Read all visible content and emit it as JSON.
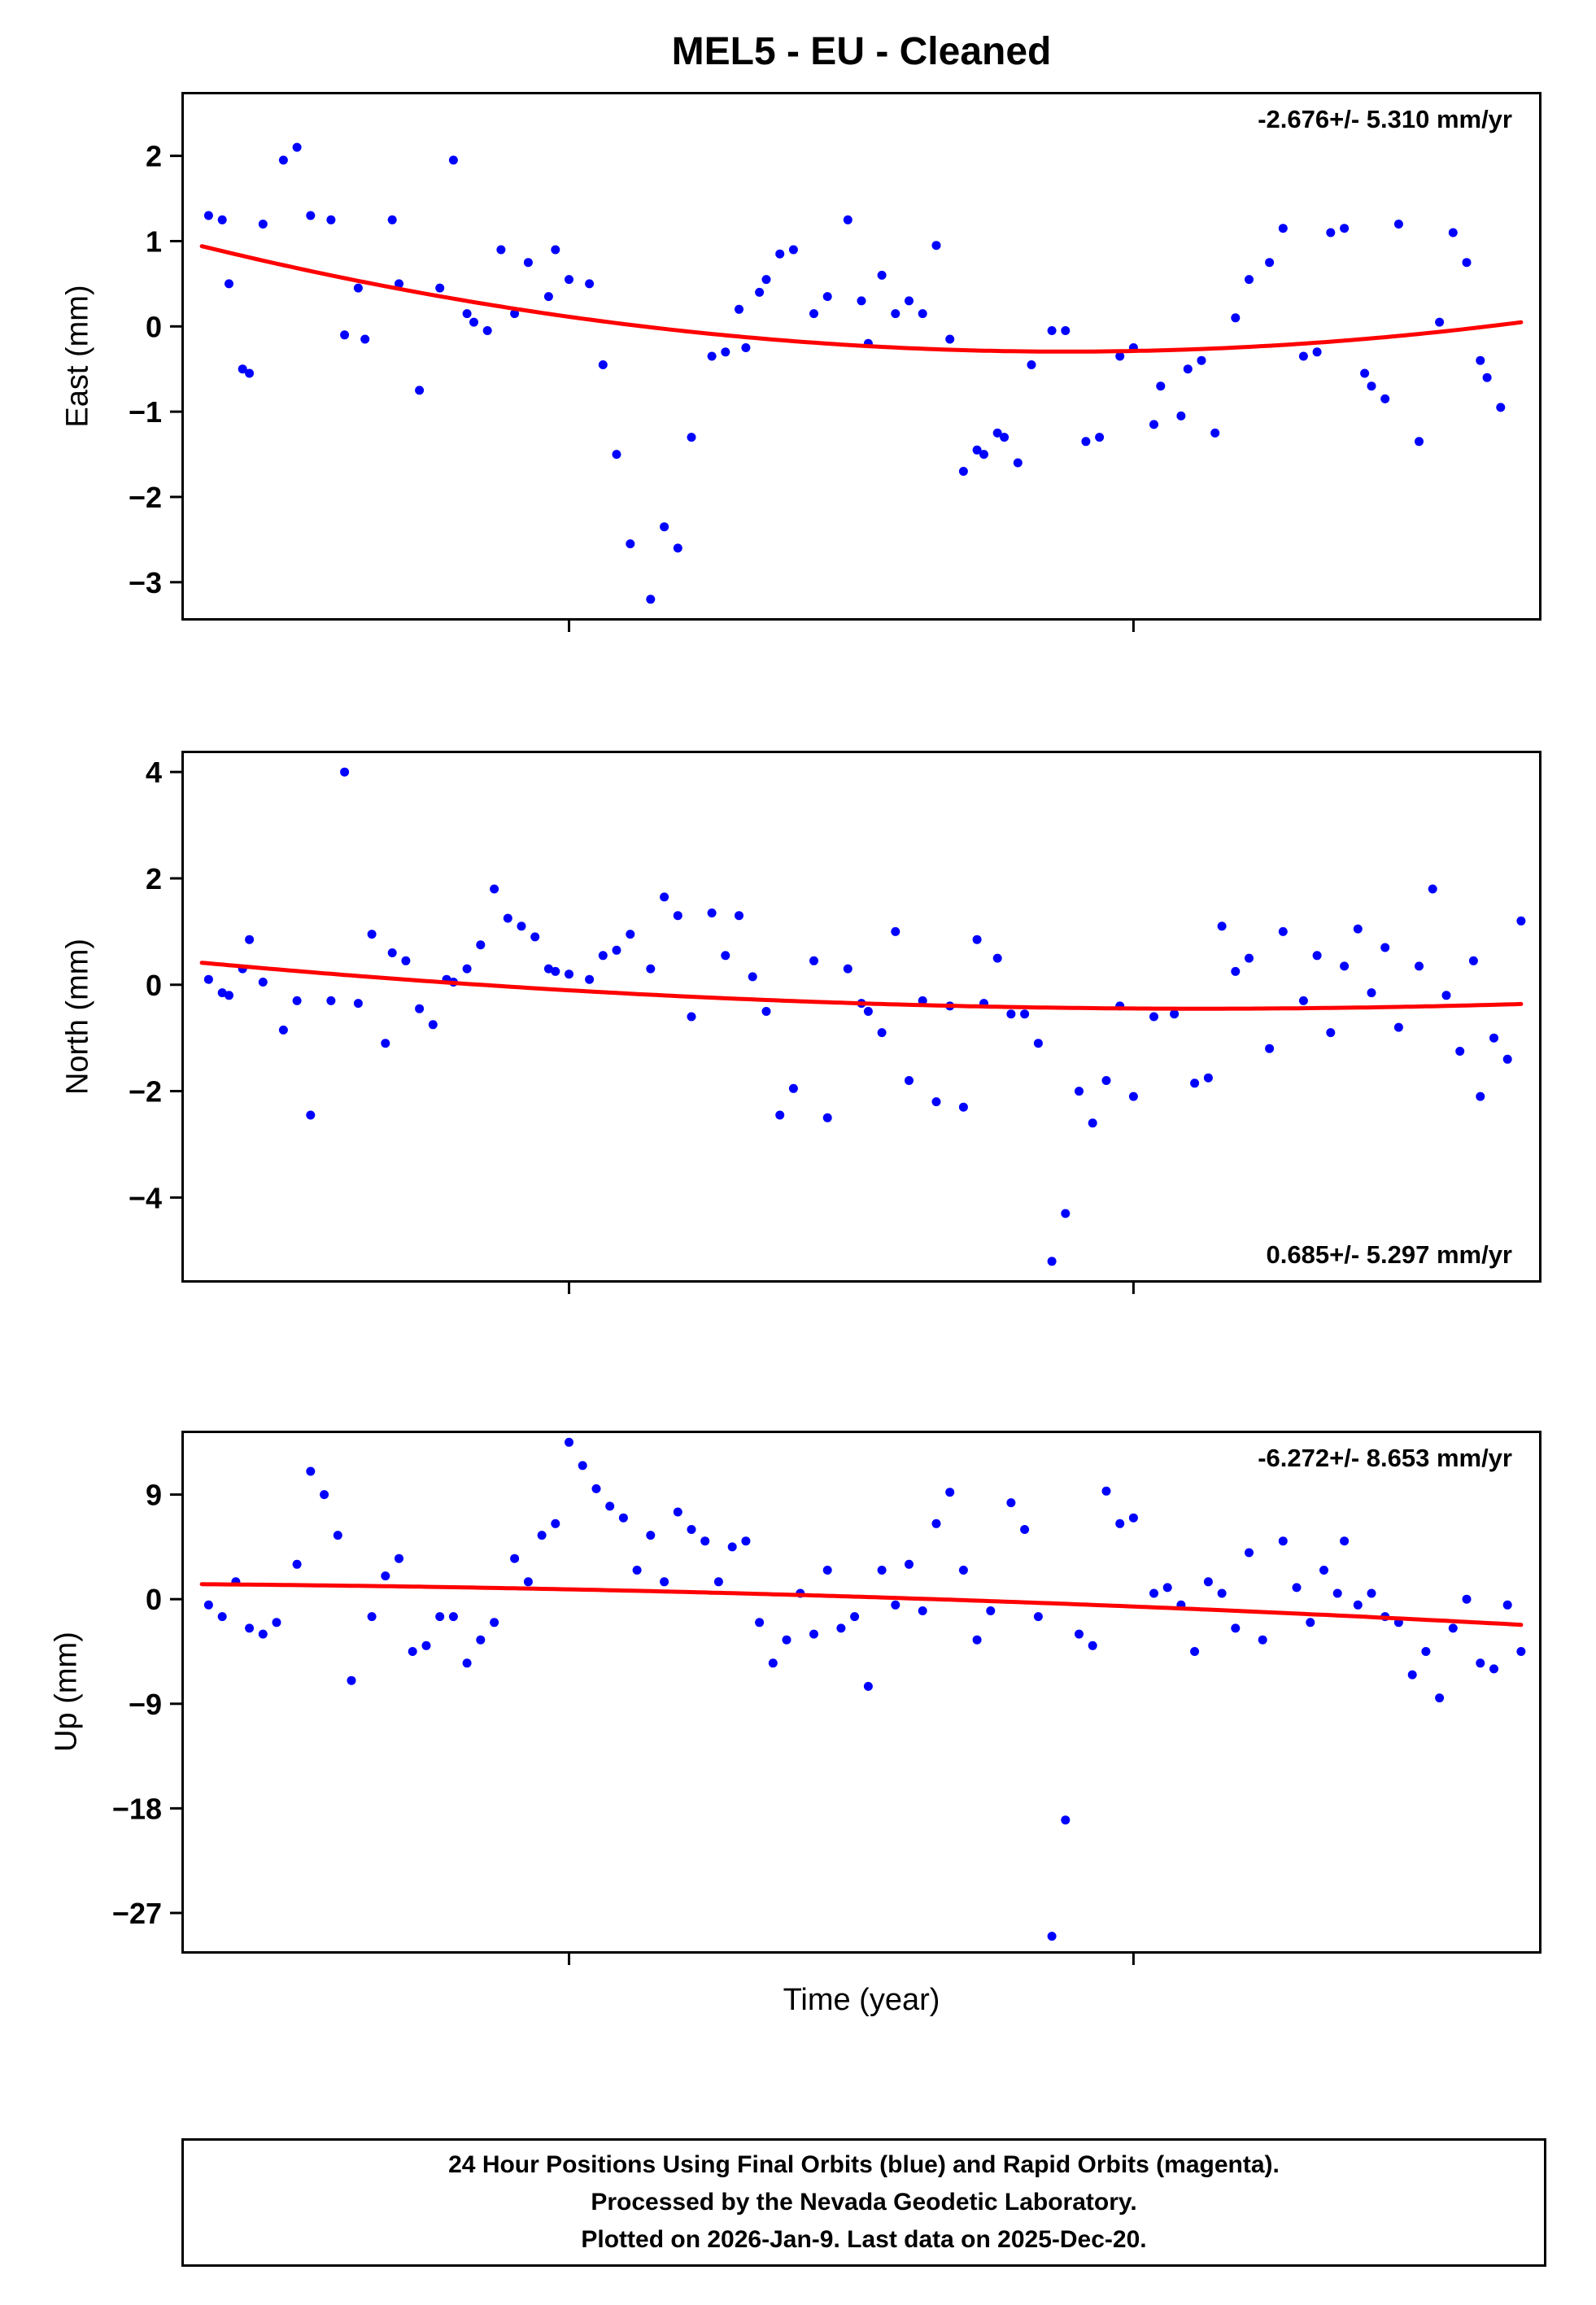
{
  "title": "MEL5  - EU - Cleaned",
  "xlabel": "Time (year)",
  "colors": {
    "point": "#0000ff",
    "trend": "#ff0000",
    "axis": "#000000"
  },
  "footer": {
    "line1": "24 Hour Positions Using Final Orbits (blue) and Rapid Orbits (magenta).",
    "line2": "Processed by the Nevada Geodetic Laboratory.",
    "line3": "Plotted on 2026-Jan-9. Last data on 2025-Dec-20."
  },
  "chart_data": [
    {
      "type": "scatter",
      "name": "east",
      "ylabel": "East (mm)",
      "annotation": "-2.676+/- 5.310 mm/yr",
      "annotation_pos": "top-right",
      "xlim": [
        0,
        1
      ],
      "xticks": [
        0.285,
        0.7
      ],
      "ylim": [
        -3.45,
        2.75
      ],
      "yticks": [
        2,
        1,
        0,
        -1,
        -2,
        -3
      ],
      "trend": {
        "type": "quadratic",
        "coeffs": [
          1.0,
          -3.987,
          3.067
        ]
      },
      "points": [
        [
          0.02,
          1.3
        ],
        [
          0.03,
          1.25
        ],
        [
          0.035,
          0.5
        ],
        [
          0.045,
          -0.5
        ],
        [
          0.05,
          -0.55
        ],
        [
          0.06,
          1.2
        ],
        [
          0.075,
          1.95
        ],
        [
          0.085,
          2.1
        ],
        [
          0.095,
          1.3
        ],
        [
          0.11,
          1.25
        ],
        [
          0.12,
          -0.1
        ],
        [
          0.13,
          0.45
        ],
        [
          0.135,
          -0.15
        ],
        [
          0.155,
          1.25
        ],
        [
          0.16,
          0.5
        ],
        [
          0.175,
          -0.75
        ],
        [
          0.19,
          0.45
        ],
        [
          0.2,
          1.95
        ],
        [
          0.21,
          0.15
        ],
        [
          0.215,
          0.05
        ],
        [
          0.225,
          -0.05
        ],
        [
          0.235,
          0.9
        ],
        [
          0.245,
          0.15
        ],
        [
          0.255,
          0.75
        ],
        [
          0.27,
          0.35
        ],
        [
          0.275,
          0.9
        ],
        [
          0.285,
          0.55
        ],
        [
          0.3,
          0.5
        ],
        [
          0.31,
          -0.45
        ],
        [
          0.32,
          -1.5
        ],
        [
          0.33,
          -2.55
        ],
        [
          0.345,
          -3.2
        ],
        [
          0.355,
          -2.35
        ],
        [
          0.365,
          -2.6
        ],
        [
          0.375,
          -1.3
        ],
        [
          0.39,
          -0.35
        ],
        [
          0.4,
          -0.3
        ],
        [
          0.41,
          0.2
        ],
        [
          0.415,
          -0.25
        ],
        [
          0.425,
          0.4
        ],
        [
          0.43,
          0.55
        ],
        [
          0.44,
          0.85
        ],
        [
          0.45,
          0.9
        ],
        [
          0.465,
          0.15
        ],
        [
          0.475,
          0.35
        ],
        [
          0.49,
          1.25
        ],
        [
          0.5,
          0.3
        ],
        [
          0.505,
          -0.2
        ],
        [
          0.515,
          0.6
        ],
        [
          0.525,
          0.15
        ],
        [
          0.535,
          0.3
        ],
        [
          0.545,
          0.15
        ],
        [
          0.555,
          0.95
        ],
        [
          0.565,
          -0.15
        ],
        [
          0.575,
          -1.7
        ],
        [
          0.585,
          -1.45
        ],
        [
          0.59,
          -1.5
        ],
        [
          0.6,
          -1.25
        ],
        [
          0.605,
          -1.3
        ],
        [
          0.615,
          -1.6
        ],
        [
          0.625,
          -0.45
        ],
        [
          0.64,
          -0.05
        ],
        [
          0.65,
          -0.05
        ],
        [
          0.665,
          -1.35
        ],
        [
          0.675,
          -1.3
        ],
        [
          0.69,
          -0.35
        ],
        [
          0.7,
          -0.25
        ],
        [
          0.715,
          -1.15
        ],
        [
          0.72,
          -0.7
        ],
        [
          0.735,
          -1.05
        ],
        [
          0.74,
          -0.5
        ],
        [
          0.75,
          -0.4
        ],
        [
          0.76,
          -1.25
        ],
        [
          0.775,
          0.1
        ],
        [
          0.785,
          0.55
        ],
        [
          0.8,
          0.75
        ],
        [
          0.81,
          1.15
        ],
        [
          0.825,
          -0.35
        ],
        [
          0.835,
          -0.3
        ],
        [
          0.845,
          1.1
        ],
        [
          0.855,
          1.15
        ],
        [
          0.87,
          -0.55
        ],
        [
          0.875,
          -0.7
        ],
        [
          0.885,
          -0.85
        ],
        [
          0.895,
          1.2
        ],
        [
          0.91,
          -1.35
        ],
        [
          0.925,
          0.05
        ],
        [
          0.935,
          1.1
        ],
        [
          0.945,
          0.75
        ],
        [
          0.955,
          -0.4
        ],
        [
          0.96,
          -0.6
        ],
        [
          0.97,
          -0.95
        ]
      ]
    },
    {
      "type": "scatter",
      "name": "north",
      "ylabel": "North (mm)",
      "annotation": "0.685+/- 5.297 mm/yr",
      "annotation_pos": "bottom-right",
      "xlim": [
        0,
        1
      ],
      "xticks": [
        0.285,
        0.7
      ],
      "ylim": [
        -5.6,
        4.4
      ],
      "yticks": [
        4,
        2,
        0,
        -2,
        -4
      ],
      "trend": {
        "type": "quadratic",
        "coeffs": [
          0.45,
          -2.4,
          1.6
        ]
      },
      "points": [
        [
          0.02,
          0.1
        ],
        [
          0.03,
          -0.15
        ],
        [
          0.035,
          -0.2
        ],
        [
          0.045,
          0.3
        ],
        [
          0.05,
          0.85
        ],
        [
          0.06,
          0.05
        ],
        [
          0.075,
          -0.85
        ],
        [
          0.085,
          -0.3
        ],
        [
          0.095,
          -2.45
        ],
        [
          0.11,
          -0.3
        ],
        [
          0.12,
          4.0
        ],
        [
          0.13,
          -0.35
        ],
        [
          0.14,
          0.95
        ],
        [
          0.15,
          -1.1
        ],
        [
          0.155,
          0.6
        ],
        [
          0.165,
          0.45
        ],
        [
          0.175,
          -0.45
        ],
        [
          0.185,
          -0.75
        ],
        [
          0.195,
          0.1
        ],
        [
          0.2,
          0.05
        ],
        [
          0.21,
          0.3
        ],
        [
          0.22,
          0.75
        ],
        [
          0.23,
          1.8
        ],
        [
          0.24,
          1.25
        ],
        [
          0.25,
          1.1
        ],
        [
          0.26,
          0.9
        ],
        [
          0.27,
          0.3
        ],
        [
          0.275,
          0.25
        ],
        [
          0.285,
          0.2
        ],
        [
          0.3,
          0.1
        ],
        [
          0.31,
          0.55
        ],
        [
          0.32,
          0.65
        ],
        [
          0.33,
          0.95
        ],
        [
          0.345,
          0.3
        ],
        [
          0.355,
          1.65
        ],
        [
          0.365,
          1.3
        ],
        [
          0.375,
          -0.6
        ],
        [
          0.39,
          1.35
        ],
        [
          0.4,
          0.55
        ],
        [
          0.41,
          1.3
        ],
        [
          0.42,
          0.15
        ],
        [
          0.43,
          -0.5
        ],
        [
          0.44,
          -2.45
        ],
        [
          0.45,
          -1.95
        ],
        [
          0.465,
          0.45
        ],
        [
          0.475,
          -2.5
        ],
        [
          0.49,
          0.3
        ],
        [
          0.5,
          -0.35
        ],
        [
          0.505,
          -0.5
        ],
        [
          0.515,
          -0.9
        ],
        [
          0.525,
          1.0
        ],
        [
          0.535,
          -1.8
        ],
        [
          0.545,
          -0.3
        ],
        [
          0.555,
          -2.2
        ],
        [
          0.565,
          -0.4
        ],
        [
          0.575,
          -2.3
        ],
        [
          0.585,
          0.85
        ],
        [
          0.59,
          -0.35
        ],
        [
          0.6,
          0.5
        ],
        [
          0.61,
          -0.55
        ],
        [
          0.62,
          -0.55
        ],
        [
          0.63,
          -1.1
        ],
        [
          0.64,
          -5.2
        ],
        [
          0.65,
          -4.3
        ],
        [
          0.66,
          -2.0
        ],
        [
          0.67,
          -2.6
        ],
        [
          0.68,
          -1.8
        ],
        [
          0.69,
          -0.4
        ],
        [
          0.7,
          -2.1
        ],
        [
          0.715,
          -0.6
        ],
        [
          0.73,
          -0.55
        ],
        [
          0.745,
          -1.85
        ],
        [
          0.755,
          -1.75
        ],
        [
          0.765,
          1.1
        ],
        [
          0.775,
          0.25
        ],
        [
          0.785,
          0.5
        ],
        [
          0.8,
          -1.2
        ],
        [
          0.81,
          1.0
        ],
        [
          0.825,
          -0.3
        ],
        [
          0.835,
          0.55
        ],
        [
          0.845,
          -0.9
        ],
        [
          0.855,
          0.35
        ],
        [
          0.865,
          1.05
        ],
        [
          0.875,
          -0.15
        ],
        [
          0.885,
          0.7
        ],
        [
          0.895,
          -0.8
        ],
        [
          0.91,
          0.35
        ],
        [
          0.92,
          1.8
        ],
        [
          0.93,
          -0.2
        ],
        [
          0.94,
          -1.25
        ],
        [
          0.95,
          0.45
        ],
        [
          0.955,
          -2.1
        ],
        [
          0.965,
          -1.0
        ],
        [
          0.975,
          -1.4
        ],
        [
          0.985,
          1.2
        ]
      ]
    },
    {
      "type": "scatter",
      "name": "up",
      "ylabel": "Up (mm)",
      "annotation": "-6.272+/- 8.653 mm/yr",
      "annotation_pos": "top-right",
      "xlim": [
        0,
        1
      ],
      "xticks": [
        0.285,
        0.7
      ],
      "ylim": [
        -30.5,
        14.5
      ],
      "yticks": [
        9,
        0,
        -9,
        -18,
        -27
      ],
      "trend": {
        "type": "quadratic",
        "coeffs": [
          1.3,
          -0.8,
          -2.8
        ]
      },
      "points": [
        [
          0.02,
          -0.5
        ],
        [
          0.03,
          -1.5
        ],
        [
          0.04,
          1.5
        ],
        [
          0.05,
          -2.5
        ],
        [
          0.06,
          -3.0
        ],
        [
          0.07,
          -2.0
        ],
        [
          0.085,
          3.0
        ],
        [
          0.095,
          11.0
        ],
        [
          0.105,
          9.0
        ],
        [
          0.115,
          5.5
        ],
        [
          0.125,
          -7.0
        ],
        [
          0.14,
          -1.5
        ],
        [
          0.15,
          2.0
        ],
        [
          0.16,
          3.5
        ],
        [
          0.17,
          -4.5
        ],
        [
          0.18,
          -4.0
        ],
        [
          0.19,
          -1.5
        ],
        [
          0.2,
          -1.5
        ],
        [
          0.21,
          -5.5
        ],
        [
          0.22,
          -3.5
        ],
        [
          0.23,
          -2.0
        ],
        [
          0.245,
          3.5
        ],
        [
          0.255,
          1.5
        ],
        [
          0.265,
          5.5
        ],
        [
          0.275,
          6.5
        ],
        [
          0.285,
          13.5
        ],
        [
          0.295,
          11.5
        ],
        [
          0.305,
          9.5
        ],
        [
          0.315,
          8.0
        ],
        [
          0.325,
          7.0
        ],
        [
          0.335,
          2.5
        ],
        [
          0.345,
          5.5
        ],
        [
          0.355,
          1.5
        ],
        [
          0.365,
          7.5
        ],
        [
          0.375,
          6.0
        ],
        [
          0.385,
          5.0
        ],
        [
          0.395,
          1.5
        ],
        [
          0.405,
          4.5
        ],
        [
          0.415,
          5.0
        ],
        [
          0.425,
          -2.0
        ],
        [
          0.435,
          -5.5
        ],
        [
          0.445,
          -3.5
        ],
        [
          0.455,
          0.5
        ],
        [
          0.465,
          -3.0
        ],
        [
          0.475,
          2.5
        ],
        [
          0.485,
          -2.5
        ],
        [
          0.495,
          -1.5
        ],
        [
          0.505,
          -7.5
        ],
        [
          0.515,
          2.5
        ],
        [
          0.525,
          -0.5
        ],
        [
          0.535,
          3.0
        ],
        [
          0.545,
          -1.0
        ],
        [
          0.555,
          6.5
        ],
        [
          0.565,
          9.2
        ],
        [
          0.575,
          2.5
        ],
        [
          0.585,
          -3.5
        ],
        [
          0.595,
          -1.0
        ],
        [
          0.61,
          8.3
        ],
        [
          0.62,
          6.0
        ],
        [
          0.63,
          -1.5
        ],
        [
          0.64,
          -29.0
        ],
        [
          0.65,
          -19.0
        ],
        [
          0.66,
          -3.0
        ],
        [
          0.67,
          -4.0
        ],
        [
          0.68,
          9.3
        ],
        [
          0.69,
          6.5
        ],
        [
          0.7,
          7.0
        ],
        [
          0.715,
          0.5
        ],
        [
          0.725,
          1.0
        ],
        [
          0.735,
          -0.5
        ],
        [
          0.745,
          -4.5
        ],
        [
          0.755,
          1.5
        ],
        [
          0.765,
          0.5
        ],
        [
          0.775,
          -2.5
        ],
        [
          0.785,
          4.0
        ],
        [
          0.795,
          -3.5
        ],
        [
          0.81,
          5.0
        ],
        [
          0.82,
          1.0
        ],
        [
          0.83,
          -2.0
        ],
        [
          0.84,
          2.5
        ],
        [
          0.85,
          0.5
        ],
        [
          0.855,
          5.0
        ],
        [
          0.865,
          -0.5
        ],
        [
          0.875,
          0.5
        ],
        [
          0.885,
          -1.5
        ],
        [
          0.895,
          -2.0
        ],
        [
          0.905,
          -6.5
        ],
        [
          0.915,
          -4.5
        ],
        [
          0.925,
          -8.5
        ],
        [
          0.935,
          -2.5
        ],
        [
          0.945,
          0.0
        ],
        [
          0.955,
          -5.5
        ],
        [
          0.965,
          -6.0
        ],
        [
          0.975,
          -0.5
        ],
        [
          0.985,
          -4.5
        ]
      ]
    }
  ]
}
